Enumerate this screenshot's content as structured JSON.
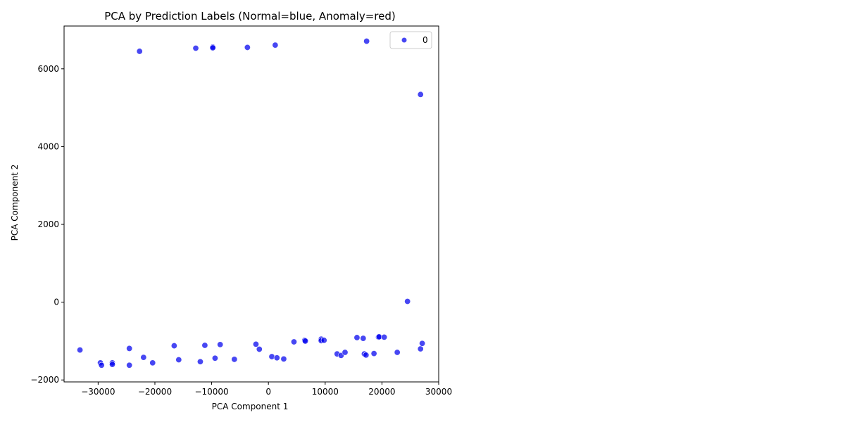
{
  "chart_data": {
    "type": "scatter",
    "title": "PCA by Prediction Labels (Normal=blue, Anomaly=red)",
    "xlabel": "PCA Component 1",
    "ylabel": "PCA Component 2",
    "xlim": [
      -36000,
      30000
    ],
    "ylim": [
      -2050,
      7100
    ],
    "xticks": [
      -30000,
      -20000,
      -10000,
      0,
      10000,
      20000,
      30000
    ],
    "yticks": [
      -2000,
      0,
      2000,
      4000,
      6000
    ],
    "grid": false,
    "legend": {
      "position": "top-right",
      "entries": [
        "0"
      ]
    },
    "series": [
      {
        "name": "0",
        "color": "#0000ee",
        "marker": "circle",
        "points": [
          [
            -22700,
            6450
          ],
          [
            -12800,
            6530
          ],
          [
            -9800,
            6560
          ],
          [
            -9800,
            6540
          ],
          [
            -3700,
            6550
          ],
          [
            1200,
            6610
          ],
          [
            17300,
            6710
          ],
          [
            26800,
            5340
          ],
          [
            24500,
            20
          ],
          [
            -33200,
            -1230
          ],
          [
            -29600,
            -1560
          ],
          [
            -29400,
            -1620
          ],
          [
            -27500,
            -1560
          ],
          [
            -27500,
            -1600
          ],
          [
            -24500,
            -1190
          ],
          [
            -24500,
            -1620
          ],
          [
            -22000,
            -1420
          ],
          [
            -20400,
            -1560
          ],
          [
            -16600,
            -1120
          ],
          [
            -15800,
            -1480
          ],
          [
            -12000,
            -1530
          ],
          [
            -11200,
            -1110
          ],
          [
            -9400,
            -1440
          ],
          [
            -8500,
            -1090
          ],
          [
            -6000,
            -1470
          ],
          [
            -2200,
            -1080
          ],
          [
            -1600,
            -1210
          ],
          [
            600,
            -1400
          ],
          [
            1500,
            -1430
          ],
          [
            2700,
            -1460
          ],
          [
            4500,
            -1020
          ],
          [
            6400,
            -980
          ],
          [
            6500,
            -1000
          ],
          [
            9300,
            -950
          ],
          [
            9300,
            -990
          ],
          [
            9800,
            -980
          ],
          [
            12100,
            -1330
          ],
          [
            12800,
            -1370
          ],
          [
            13500,
            -1290
          ],
          [
            15600,
            -910
          ],
          [
            16700,
            -930
          ],
          [
            16900,
            -1330
          ],
          [
            17200,
            -1360
          ],
          [
            18600,
            -1320
          ],
          [
            19400,
            -900
          ],
          [
            19500,
            -890
          ],
          [
            20400,
            -900
          ],
          [
            22700,
            -1290
          ],
          [
            26800,
            -1200
          ],
          [
            27100,
            -1060
          ]
        ]
      }
    ]
  }
}
